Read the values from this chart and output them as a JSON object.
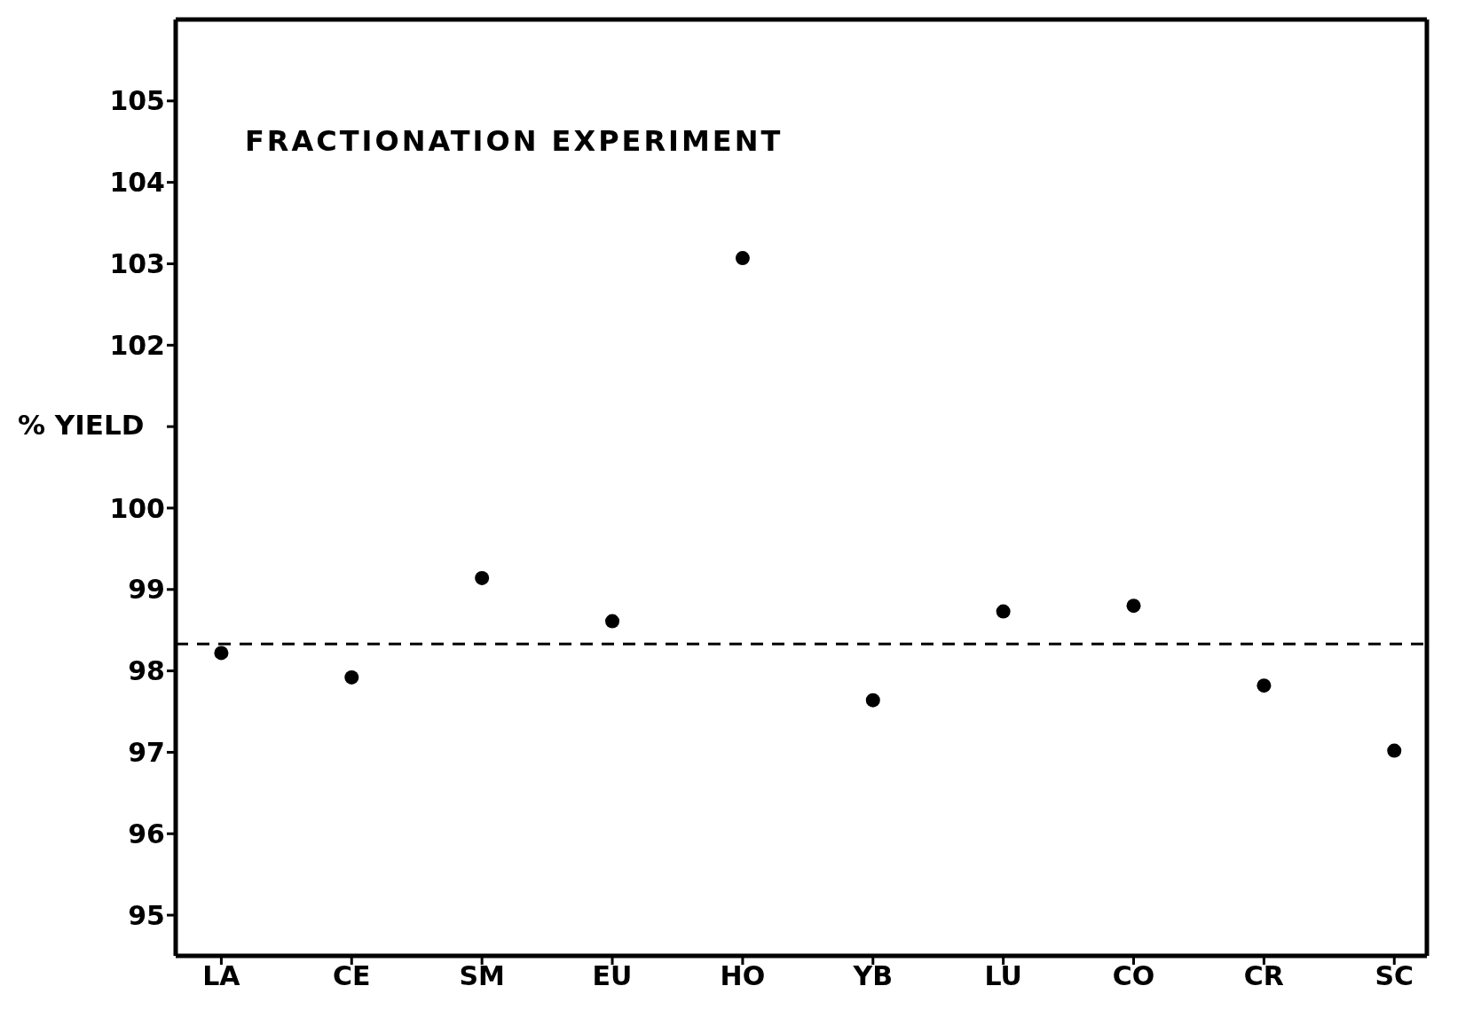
{
  "chart_data": {
    "type": "scatter",
    "title": "FRACTIONATION EXPERIMENT",
    "ylabel": "% YIELD",
    "categories": [
      "LA",
      "CE",
      "SM",
      "EU",
      "HO",
      "YB",
      "LU",
      "CO",
      "CR",
      "SC"
    ],
    "series": [
      {
        "color": "#000000",
        "values": [
          98.22,
          97.92,
          99.14,
          98.61,
          103.07,
          97.64,
          98.73,
          98.8,
          97.82,
          97.02
        ]
      }
    ],
    "ylim": [
      94.5,
      106
    ],
    "yticks": [
      95,
      96,
      97,
      98,
      99,
      100,
      {
        "value": 101,
        "label": null
      },
      102,
      103,
      104,
      105
    ],
    "ref_lines": [
      {
        "axis": "y",
        "value": 98.33,
        "line_style": "dashed",
        "color": "#000000"
      }
    ],
    "marker": "circle"
  }
}
